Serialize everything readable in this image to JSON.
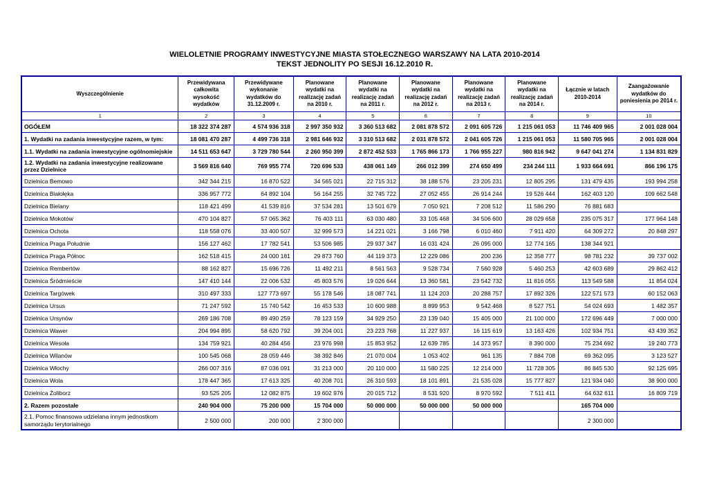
{
  "page": {
    "title_line1": "WIELOLETNIE PROGRAMY INWESTYCYJNE MIASTA STOŁECZNEGO WARSZAWY NA LATA 2010-2014",
    "title_line2": "TEKST JEDNOLITY PO SESJI 16.12.2010 R."
  },
  "table": {
    "border_color": "#0000A0",
    "headers": [
      "Wyszczególnienie",
      "Przewidywana całkowita wysokość wydatków",
      "Przewidywane wykonanie wydatków do 31.12.2009 r.",
      "Planowane wydatki na realizację zadań na 2010 r.",
      "Planowane wydatki na realizację zadań na 2011 r.",
      "Planowane wydatki na realizację zadań na 2012 r.",
      "Planowane wydatki na realizację zadań na 2013 r.",
      "Planowane wydatki na realizację zadań na 2014 r.",
      "Łącznie w latach 2010-2014",
      "Zaangażowanie wydatków do poniesienia po 2014 r."
    ],
    "column_numbers": [
      "1",
      "2",
      "3",
      "4",
      "5",
      "6",
      "7",
      "8",
      "9",
      "10"
    ],
    "rows": [
      {
        "label": "OGÓŁEM",
        "bold": true,
        "values": [
          "18 322 374 287",
          "4 574 936 318",
          "2 997 350 932",
          "3 360 513 682",
          "2 081 878 572",
          "2 091 605 726",
          "1 215 061 053",
          "11 746 409 965",
          "2 001 028 004"
        ]
      },
      {
        "label": "1. Wydatki na zadania inwestycyjne razem, w tym:",
        "bold": true,
        "values": [
          "18 081 470 287",
          "4 499 736 318",
          "2 981 646 932",
          "3 310 513 682",
          "2 031 878 572",
          "2 041 605 726",
          "1 215 061 053",
          "11 580 705 965",
          "2 001 028 004"
        ]
      },
      {
        "label": "1.1. Wydatki na zadania inwestycyjne ogólnomiejskie",
        "bold": true,
        "values": [
          "14 511 653 647",
          "3 729 780 544",
          "2 260 950 399",
          "2 872 452 533",
          "1 765 866 173",
          "1 766 955 227",
          "980 816 942",
          "9 647 041 274",
          "1 134 831 829"
        ]
      },
      {
        "label": "1.2. Wydatki na zadania inwestycyjne realizowane przez Dzielnice",
        "bold": true,
        "values": [
          "3 569 816 640",
          "769 955 774",
          "720 696 533",
          "438 061 149",
          "266 012 399",
          "274 650 499",
          "234 244 111",
          "1 933 664 691",
          "866 196 175"
        ]
      },
      {
        "label": "Dzielnica Bemowo",
        "bold": false,
        "values": [
          "342 344 215",
          "16 870 522",
          "34 565 021",
          "22 715 312",
          "38 188 576",
          "23 205 231",
          "12 805 295",
          "131 479 435",
          "193 994 258"
        ]
      },
      {
        "label": "Dzielnica Białołęka",
        "bold": false,
        "values": [
          "336 957 772",
          "64 892 104",
          "56 164 255",
          "32 745 722",
          "27 052 455",
          "26 914 244",
          "19 526 444",
          "162 403 120",
          "109 662 548"
        ]
      },
      {
        "label": "Dzielnica Bielany",
        "bold": false,
        "values": [
          "118 421 499",
          "41 539 816",
          "37 534 281",
          "13 501 679",
          "7 050 921",
          "7 208 512",
          "11 586 290",
          "76 881 683",
          ""
        ]
      },
      {
        "label": "Dzielnica Mokotów",
        "bold": false,
        "values": [
          "470 104 827",
          "57 065 362",
          "76 403 111",
          "63 030 480",
          "33 105 468",
          "34 506 600",
          "28 029 658",
          "235 075 317",
          "177 964 148"
        ]
      },
      {
        "label": "Dzielnica Ochota",
        "bold": false,
        "values": [
          "118 558 076",
          "33 400 507",
          "32 999 573",
          "14 221 021",
          "3 166 798",
          "6 010 460",
          "7 911 420",
          "64 309 272",
          "20 848 297"
        ]
      },
      {
        "label": "Dzielnica Praga Południe",
        "bold": false,
        "values": [
          "156 127 462",
          "17 782 541",
          "53 506 985",
          "29 937 347",
          "16 031 424",
          "26 095 000",
          "12 774 165",
          "138 344 921",
          ""
        ]
      },
      {
        "label": "Dzielnica Praga Północ",
        "bold": false,
        "values": [
          "162 518 415",
          "24 000 181",
          "29 873 760",
          "44 119 373",
          "12 229 086",
          "200 236",
          "12 358 777",
          "98 781 232",
          "39 737 002"
        ]
      },
      {
        "label": "Dzielnica Rembertów",
        "bold": false,
        "values": [
          "88 162 827",
          "15 696 726",
          "11 492 211",
          "8 561 563",
          "9 528 734",
          "7 560 928",
          "5 460 253",
          "42 603 689",
          "29 862 412"
        ]
      },
      {
        "label": "Dzielnica Śródmieście",
        "bold": false,
        "values": [
          "147 410 144",
          "22 006 532",
          "45 803 576",
          "19 026 644",
          "13 360 581",
          "23 542 732",
          "11 816 055",
          "113 549 588",
          "11 854 024"
        ]
      },
      {
        "label": "Dzielnica Targówek",
        "bold": false,
        "values": [
          "310 497 333",
          "127 773 697",
          "55 178 546",
          "18 087 741",
          "11 124 203",
          "20 288 757",
          "17 892 326",
          "122 571 573",
          "60 152 063"
        ]
      },
      {
        "label": "Dzielnica Ursus",
        "bold": false,
        "values": [
          "71 247 592",
          "15 740 542",
          "16 453 533",
          "10 600 988",
          "8 899 953",
          "9 542 468",
          "8 527 751",
          "54 024 693",
          "1 482 357"
        ]
      },
      {
        "label": "Dzielnica Ursynów",
        "bold": false,
        "values": [
          "269 186 708",
          "89 490 259",
          "78 123 159",
          "34 929 250",
          "23 139 040",
          "15 405 000",
          "21 100 000",
          "172 696 449",
          "7 000 000"
        ]
      },
      {
        "label": "Dzielnica Wawer",
        "bold": false,
        "values": [
          "204 994 895",
          "58 620 792",
          "39 204 001",
          "23 223 768",
          "11 227 937",
          "16 115 619",
          "13 163 426",
          "102 934 751",
          "43 439 352"
        ]
      },
      {
        "label": "Dzielnica Wesoła",
        "bold": false,
        "values": [
          "134 759 921",
          "40 284 456",
          "23 976 998",
          "15 853 952",
          "12 639 785",
          "14 373 957",
          "8 390 000",
          "75 234 692",
          "19 240 773"
        ]
      },
      {
        "label": "Dzielnica Wilanów",
        "bold": false,
        "values": [
          "100 545 068",
          "28 059 446",
          "38 392 846",
          "21 070 004",
          "1 053 402",
          "961 135",
          "7 884 708",
          "69 362 095",
          "3 123 527"
        ]
      },
      {
        "label": "Dzielnica Włochy",
        "bold": false,
        "values": [
          "266 007 316",
          "87 036 091",
          "31 213 000",
          "20 110 000",
          "11 580 225",
          "12 214 000",
          "11 728 305",
          "86 845 530",
          "92 125 695"
        ]
      },
      {
        "label": "Dzielnica Wola",
        "bold": false,
        "values": [
          "178 447 365",
          "17 613 325",
          "40 208 701",
          "26 310 593",
          "18 101 891",
          "21 535 028",
          "15 777 827",
          "121 934 040",
          "38 900 000"
        ]
      },
      {
        "label": "Dzielnica Żoliborz",
        "bold": false,
        "values": [
          "93 525 205",
          "12 082 875",
          "19 602 976",
          "20 015 712",
          "8 531 920",
          "8 970 592",
          "7 511 411",
          "64 632 611",
          "16 809 719"
        ]
      },
      {
        "label": "2. Razem pozostałe",
        "bold": true,
        "values": [
          "240 904 000",
          "75 200 000",
          "15 704 000",
          "50 000 000",
          "50 000 000",
          "50 000 000",
          "",
          "165 704 000",
          ""
        ]
      },
      {
        "label": "2.1. Pomoc finansowa udzielana innym jednostkom samorządu terytorialnego",
        "bold": false,
        "values": [
          "2 500 000",
          "200 000",
          "2 300 000",
          "",
          "",
          "",
          "",
          "2 300 000",
          ""
        ]
      }
    ]
  }
}
